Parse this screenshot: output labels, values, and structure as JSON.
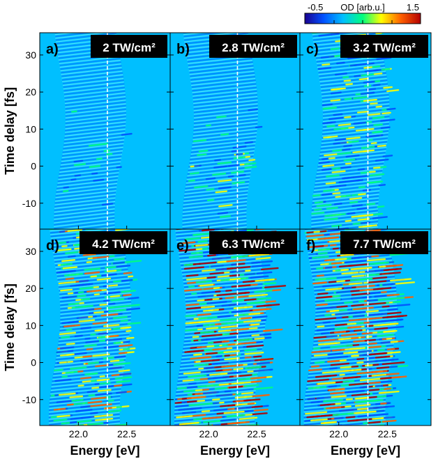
{
  "chart_data": {
    "type": "heatmap",
    "title": "",
    "xlabel": "Energy [eV]",
    "ylabel": "Time delay [fs]",
    "xlim": [
      21.6,
      22.95
    ],
    "ylim": [
      -17,
      36
    ],
    "x_ticks": [
      22.0,
      22.5
    ],
    "x_tick_labels": [
      "22.0",
      "22.5"
    ],
    "y_ticks": [
      -10,
      0,
      10,
      20,
      30
    ],
    "y_tick_labels": [
      "-10",
      "0",
      "10",
      "20",
      "30"
    ],
    "reference_line_energy": 22.3,
    "colorbar": {
      "label": "OD [arb.u.]",
      "min": -0.5,
      "max": 1.5,
      "min_label": "-0.5",
      "max_label": "1.5",
      "colors": [
        "#1a0090",
        "#0050ff",
        "#00bfff",
        "#00ff7f",
        "#ffff00",
        "#ff6000",
        "#b40000"
      ]
    },
    "panels": [
      {
        "letter": "a)",
        "intensity_label": "2 TW/cm²",
        "intensity": 2.0
      },
      {
        "letter": "b)",
        "intensity_label": "2.8 TW/cm²",
        "intensity": 2.8
      },
      {
        "letter": "c)",
        "intensity_label": "3.2 TW/cm²",
        "intensity": 3.2
      },
      {
        "letter": "d)",
        "intensity_label": "4.2 TW/cm²",
        "intensity": 4.2
      },
      {
        "letter": "e)",
        "intensity_label": "6.3 TW/cm²",
        "intensity": 6.3
      },
      {
        "letter": "f)",
        "intensity_label": "7.7 TW/cm²",
        "intensity": 7.7
      }
    ]
  }
}
